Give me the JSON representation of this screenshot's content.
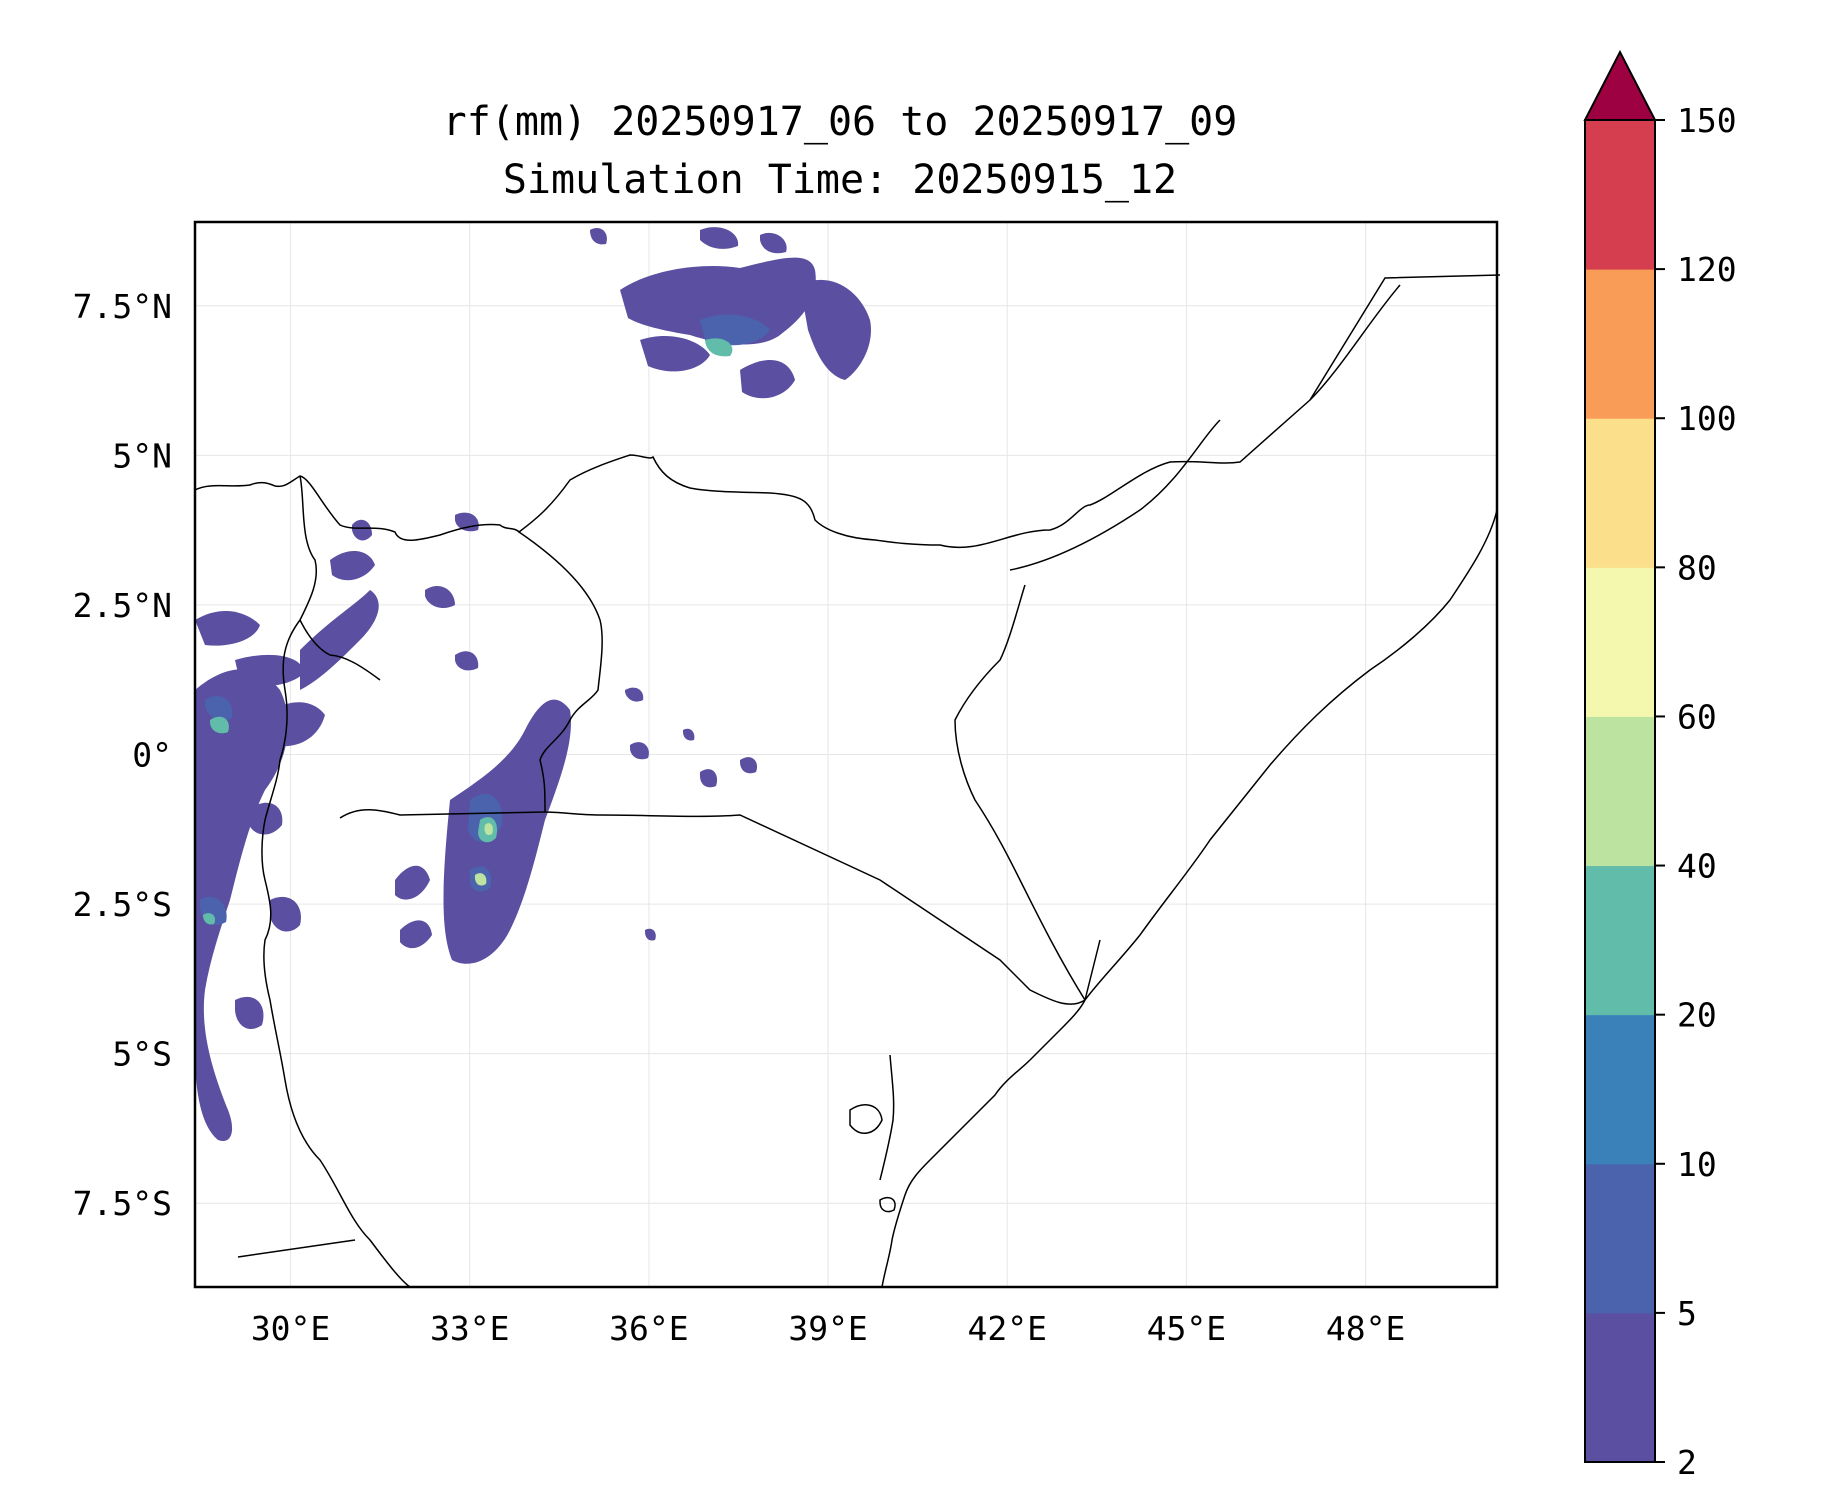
{
  "map": {
    "title_line1": "rf(mm) 20250917_06 to 20250917_09",
    "title_line2": "Simulation Time: 20250915_12",
    "extent": {
      "lon_min": 28.4,
      "lon_max": 50.2,
      "lat_min": -8.9,
      "lat_max": 8.9
    },
    "gridlines": true,
    "lon_ticks": [
      {
        "value": 30,
        "label": "30°E"
      },
      {
        "value": 33,
        "label": "33°E"
      },
      {
        "value": 36,
        "label": "36°E"
      },
      {
        "value": 39,
        "label": "39°E"
      },
      {
        "value": 42,
        "label": "42°E"
      },
      {
        "value": 45,
        "label": "45°E"
      },
      {
        "value": 48,
        "label": "48°E"
      }
    ],
    "lat_ticks": [
      {
        "value": 7.5,
        "label": "7.5°N"
      },
      {
        "value": 5,
        "label": "5°N"
      },
      {
        "value": 2.5,
        "label": "2.5°N"
      },
      {
        "value": 0,
        "label": "0°"
      },
      {
        "value": -2.5,
        "label": "2.5°S"
      },
      {
        "value": -5,
        "label": "5°S"
      },
      {
        "value": -7.5,
        "label": "7.5°S"
      }
    ]
  },
  "colorbar": {
    "levels": [
      "2",
      "5",
      "10",
      "20",
      "40",
      "60",
      "80",
      "100",
      "120",
      "150"
    ],
    "colors": [
      "#5a4fa0",
      "#4b63ad",
      "#3a80b9",
      "#62bcaa",
      "#bde3a0",
      "#f3f8ae",
      "#fcdf8a",
      "#f99c58",
      "#d43e4e"
    ],
    "extend_color": "#9e0142",
    "extend": "max"
  }
}
